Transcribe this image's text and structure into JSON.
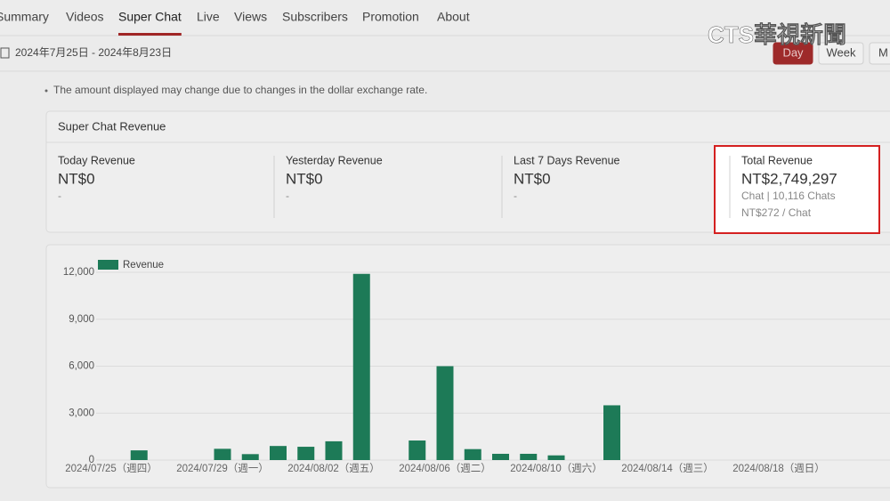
{
  "tabs": [
    "Summary",
    "Videos",
    "Super Chat",
    "Live",
    "Views",
    "Subscribers",
    "Promotion",
    "About"
  ],
  "active_tab": 2,
  "date_range": "2024年7月25日 - 2024年8月23日",
  "period_buttons": [
    "Day",
    "Week",
    "M"
  ],
  "active_period": 0,
  "watermark": "CTS華視新聞",
  "note": "The amount displayed may change due to changes in the dollar exchange rate.",
  "revenue_card": {
    "title": "Super Chat Revenue",
    "stats": [
      {
        "label": "Today Revenue",
        "value": "NT$0",
        "details": [
          "-"
        ]
      },
      {
        "label": "Yesterday Revenue",
        "value": "NT$0",
        "details": [
          "-"
        ]
      },
      {
        "label": "Last 7 Days Revenue",
        "value": "NT$0",
        "details": [
          "-"
        ]
      },
      {
        "label": "Total Revenue",
        "value": "NT$2,749,297",
        "details": [
          "Chat | 10,116 Chats",
          "NT$272 / Chat"
        ]
      }
    ],
    "highlighted": 3
  },
  "chart_data": {
    "type": "bar",
    "categories": [
      "2024/07/25（週四）",
      null,
      null,
      null,
      "2024/07/29（週一）",
      null,
      null,
      null,
      "2024/08/02（週五）",
      null,
      null,
      null,
      "2024/08/06（週二）",
      null,
      null,
      null,
      "2024/08/10（週六）",
      null,
      null,
      null,
      "2024/08/14（週三）",
      null,
      null,
      null,
      "2024/08/18（週日）",
      null,
      null,
      null
    ],
    "series": [
      {
        "name": "Revenue",
        "color": "#1d7a57",
        "values": [
          0,
          620,
          0,
          0,
          720,
          380,
          900,
          850,
          1200,
          11900,
          0,
          1250,
          6000,
          700,
          400,
          400,
          300,
          0,
          3500,
          0,
          0,
          0,
          0,
          0,
          0,
          0,
          0,
          0
        ]
      }
    ],
    "ylim": [
      0,
      12000
    ],
    "yticks": [
      0,
      {
        "value": 3000,
        "label": "3,000"
      },
      {
        "value": 6000,
        "label": "6,000"
      },
      {
        "value": 9000,
        "label": "9,000"
      },
      {
        "value": 12000,
        "label": "12,000"
      }
    ],
    "grid": true
  }
}
